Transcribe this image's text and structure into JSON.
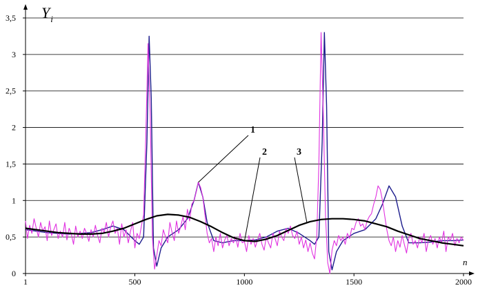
{
  "chart_data": {
    "type": "line",
    "title": "",
    "xlabel": "n",
    "ylabel": "Y",
    "ylabel_subscript": "i",
    "xlim": [
      1,
      2000
    ],
    "ylim": [
      0,
      3.5
    ],
    "x_ticks": [
      {
        "value": 1,
        "label": "1"
      },
      {
        "value": 500,
        "label": "500"
      },
      {
        "value": 1000,
        "label": "1000"
      },
      {
        "value": 1500,
        "label": "1500"
      },
      {
        "value": 2000,
        "label": "2000"
      }
    ],
    "y_ticks": [
      {
        "value": 0,
        "label": "0"
      },
      {
        "value": 0.5,
        "label": "0,5"
      },
      {
        "value": 1,
        "label": "1"
      },
      {
        "value": 1.5,
        "label": "1,5"
      },
      {
        "value": 2,
        "label": "2"
      },
      {
        "value": 2.5,
        "label": "2,5"
      },
      {
        "value": 3,
        "label": "3"
      },
      {
        "value": 3.5,
        "label": "3,5"
      }
    ],
    "grid": {
      "horizontal": true,
      "vertical": false
    },
    "colors": {
      "series_1": "#1c1c8c",
      "series_2": "#e030e0",
      "series_3": "#000000",
      "grid": "#000000"
    },
    "series": [
      {
        "label": "1",
        "x": [
          1,
          50,
          100,
          150,
          200,
          250,
          300,
          350,
          400,
          450,
          500,
          520,
          540,
          555,
          565,
          575,
          585,
          600,
          620,
          650,
          700,
          740,
          770,
          790,
          810,
          830,
          860,
          900,
          950,
          1000,
          1050,
          1100,
          1150,
          1200,
          1250,
          1300,
          1320,
          1340,
          1355,
          1365,
          1375,
          1385,
          1400,
          1420,
          1450,
          1500,
          1550,
          1600,
          1630,
          1660,
          1690,
          1720,
          1750,
          1800,
          1850,
          1900,
          1950,
          2000
        ],
        "y": [
          0.6,
          0.58,
          0.56,
          0.55,
          0.54,
          0.55,
          0.56,
          0.6,
          0.65,
          0.6,
          0.45,
          0.4,
          0.5,
          1.8,
          3.25,
          2.4,
          0.35,
          0.1,
          0.35,
          0.5,
          0.6,
          0.75,
          1.0,
          1.25,
          1.05,
          0.7,
          0.45,
          0.42,
          0.45,
          0.45,
          0.46,
          0.5,
          0.58,
          0.62,
          0.55,
          0.45,
          0.4,
          0.5,
          1.8,
          3.3,
          2.3,
          0.3,
          0.05,
          0.3,
          0.45,
          0.55,
          0.6,
          0.75,
          0.95,
          1.2,
          1.05,
          0.65,
          0.42,
          0.42,
          0.43,
          0.45,
          0.45,
          0.46
        ]
      },
      {
        "label": "2",
        "x": [
          1,
          10,
          20,
          30,
          40,
          50,
          60,
          70,
          80,
          90,
          100,
          110,
          120,
          130,
          140,
          150,
          160,
          170,
          180,
          190,
          200,
          210,
          220,
          230,
          240,
          250,
          260,
          270,
          280,
          290,
          300,
          310,
          320,
          330,
          340,
          350,
          360,
          370,
          380,
          390,
          400,
          410,
          420,
          430,
          440,
          450,
          460,
          470,
          480,
          490,
          500,
          510,
          520,
          530,
          540,
          550,
          560,
          570,
          580,
          590,
          600,
          610,
          620,
          630,
          640,
          650,
          660,
          670,
          680,
          690,
          700,
          710,
          720,
          730,
          740,
          750,
          760,
          770,
          780,
          790,
          800,
          810,
          820,
          830,
          840,
          850,
          860,
          870,
          880,
          890,
          900,
          910,
          920,
          930,
          940,
          950,
          960,
          970,
          980,
          990,
          1000,
          1010,
          1020,
          1030,
          1040,
          1050,
          1060,
          1070,
          1080,
          1090,
          1100,
          1110,
          1120,
          1130,
          1140,
          1150,
          1160,
          1170,
          1180,
          1190,
          1200,
          1210,
          1220,
          1230,
          1240,
          1250,
          1260,
          1270,
          1280,
          1290,
          1300,
          1310,
          1320,
          1330,
          1340,
          1350,
          1360,
          1370,
          1380,
          1390,
          1400,
          1410,
          1420,
          1430,
          1440,
          1450,
          1460,
          1470,
          1480,
          1490,
          1500,
          1510,
          1520,
          1530,
          1540,
          1550,
          1560,
          1570,
          1580,
          1590,
          1600,
          1610,
          1620,
          1630,
          1640,
          1650,
          1660,
          1670,
          1680,
          1690,
          1700,
          1710,
          1720,
          1730,
          1740,
          1750,
          1760,
          1770,
          1780,
          1790,
          1800,
          1810,
          1820,
          1830,
          1840,
          1850,
          1860,
          1870,
          1880,
          1890,
          1900,
          1910,
          1920,
          1930,
          1940,
          1950,
          1960,
          1970,
          1980,
          1990,
          2000
        ],
        "y": [
          0.72,
          0.48,
          0.66,
          0.55,
          0.75,
          0.62,
          0.5,
          0.7,
          0.58,
          0.64,
          0.45,
          0.72,
          0.52,
          0.6,
          0.68,
          0.48,
          0.58,
          0.5,
          0.7,
          0.46,
          0.62,
          0.54,
          0.4,
          0.65,
          0.5,
          0.58,
          0.48,
          0.62,
          0.55,
          0.44,
          0.6,
          0.5,
          0.66,
          0.52,
          0.42,
          0.62,
          0.56,
          0.7,
          0.5,
          0.64,
          0.72,
          0.55,
          0.62,
          0.4,
          0.68,
          0.5,
          0.6,
          0.42,
          0.58,
          0.7,
          0.35,
          0.55,
          0.48,
          0.65,
          0.8,
          1.9,
          3.15,
          2.2,
          0.5,
          0.06,
          0.25,
          0.45,
          0.38,
          0.6,
          0.5,
          0.42,
          0.7,
          0.56,
          0.45,
          0.72,
          0.55,
          0.65,
          0.78,
          0.6,
          0.88,
          0.72,
          0.95,
          1.0,
          1.12,
          1.25,
          1.18,
          1.05,
          0.8,
          0.55,
          0.42,
          0.48,
          0.3,
          0.5,
          0.38,
          0.55,
          0.35,
          0.46,
          0.52,
          0.38,
          0.48,
          0.42,
          0.5,
          0.36,
          0.55,
          0.42,
          0.44,
          0.3,
          0.52,
          0.4,
          0.48,
          0.36,
          0.46,
          0.55,
          0.4,
          0.32,
          0.5,
          0.42,
          0.35,
          0.55,
          0.48,
          0.38,
          0.58,
          0.5,
          0.45,
          0.62,
          0.55,
          0.65,
          0.52,
          0.48,
          0.58,
          0.4,
          0.5,
          0.35,
          0.46,
          0.3,
          0.42,
          0.28,
          0.2,
          0.5,
          1.5,
          3.3,
          2.2,
          0.8,
          0.15,
          0.0,
          0.32,
          0.45,
          0.38,
          0.52,
          0.45,
          0.5,
          0.4,
          0.55,
          0.48,
          0.62,
          0.6,
          0.7,
          0.75,
          0.65,
          0.68,
          0.6,
          0.72,
          0.78,
          0.82,
          0.95,
          1.05,
          1.2,
          1.15,
          1.0,
          0.8,
          0.6,
          0.45,
          0.38,
          0.5,
          0.3,
          0.45,
          0.36,
          0.52,
          0.4,
          0.28,
          0.48,
          0.55,
          0.4,
          0.45,
          0.35,
          0.5,
          0.42,
          0.55,
          0.3,
          0.46,
          0.52,
          0.4,
          0.48,
          0.35,
          0.5,
          0.42,
          0.58,
          0.3,
          0.5,
          0.45,
          0.55,
          0.38,
          0.48,
          0.42,
          0.5,
          0.45
        ]
      },
      {
        "label": "3",
        "x": [
          1,
          50,
          100,
          150,
          200,
          250,
          300,
          350,
          400,
          450,
          500,
          550,
          600,
          650,
          700,
          750,
          800,
          850,
          900,
          950,
          1000,
          1050,
          1100,
          1150,
          1200,
          1250,
          1300,
          1350,
          1400,
          1450,
          1500,
          1550,
          1600,
          1650,
          1700,
          1750,
          1800,
          1850,
          1900,
          1950,
          2000
        ],
        "y": [
          0.62,
          0.6,
          0.58,
          0.56,
          0.55,
          0.54,
          0.54,
          0.55,
          0.58,
          0.62,
          0.68,
          0.74,
          0.79,
          0.81,
          0.8,
          0.77,
          0.71,
          0.64,
          0.56,
          0.49,
          0.45,
          0.44,
          0.47,
          0.52,
          0.59,
          0.66,
          0.71,
          0.74,
          0.75,
          0.75,
          0.74,
          0.72,
          0.68,
          0.64,
          0.58,
          0.53,
          0.48,
          0.45,
          0.42,
          0.4,
          0.38
        ]
      }
    ],
    "annotations": [
      {
        "text": "1",
        "series": 0,
        "x": 790,
        "y": 1.25
      },
      {
        "text": "2",
        "series": 1,
        "x": 1000,
        "y": 0.44
      },
      {
        "text": "3",
        "series": 2,
        "x": 1285,
        "y": 0.7
      }
    ]
  }
}
